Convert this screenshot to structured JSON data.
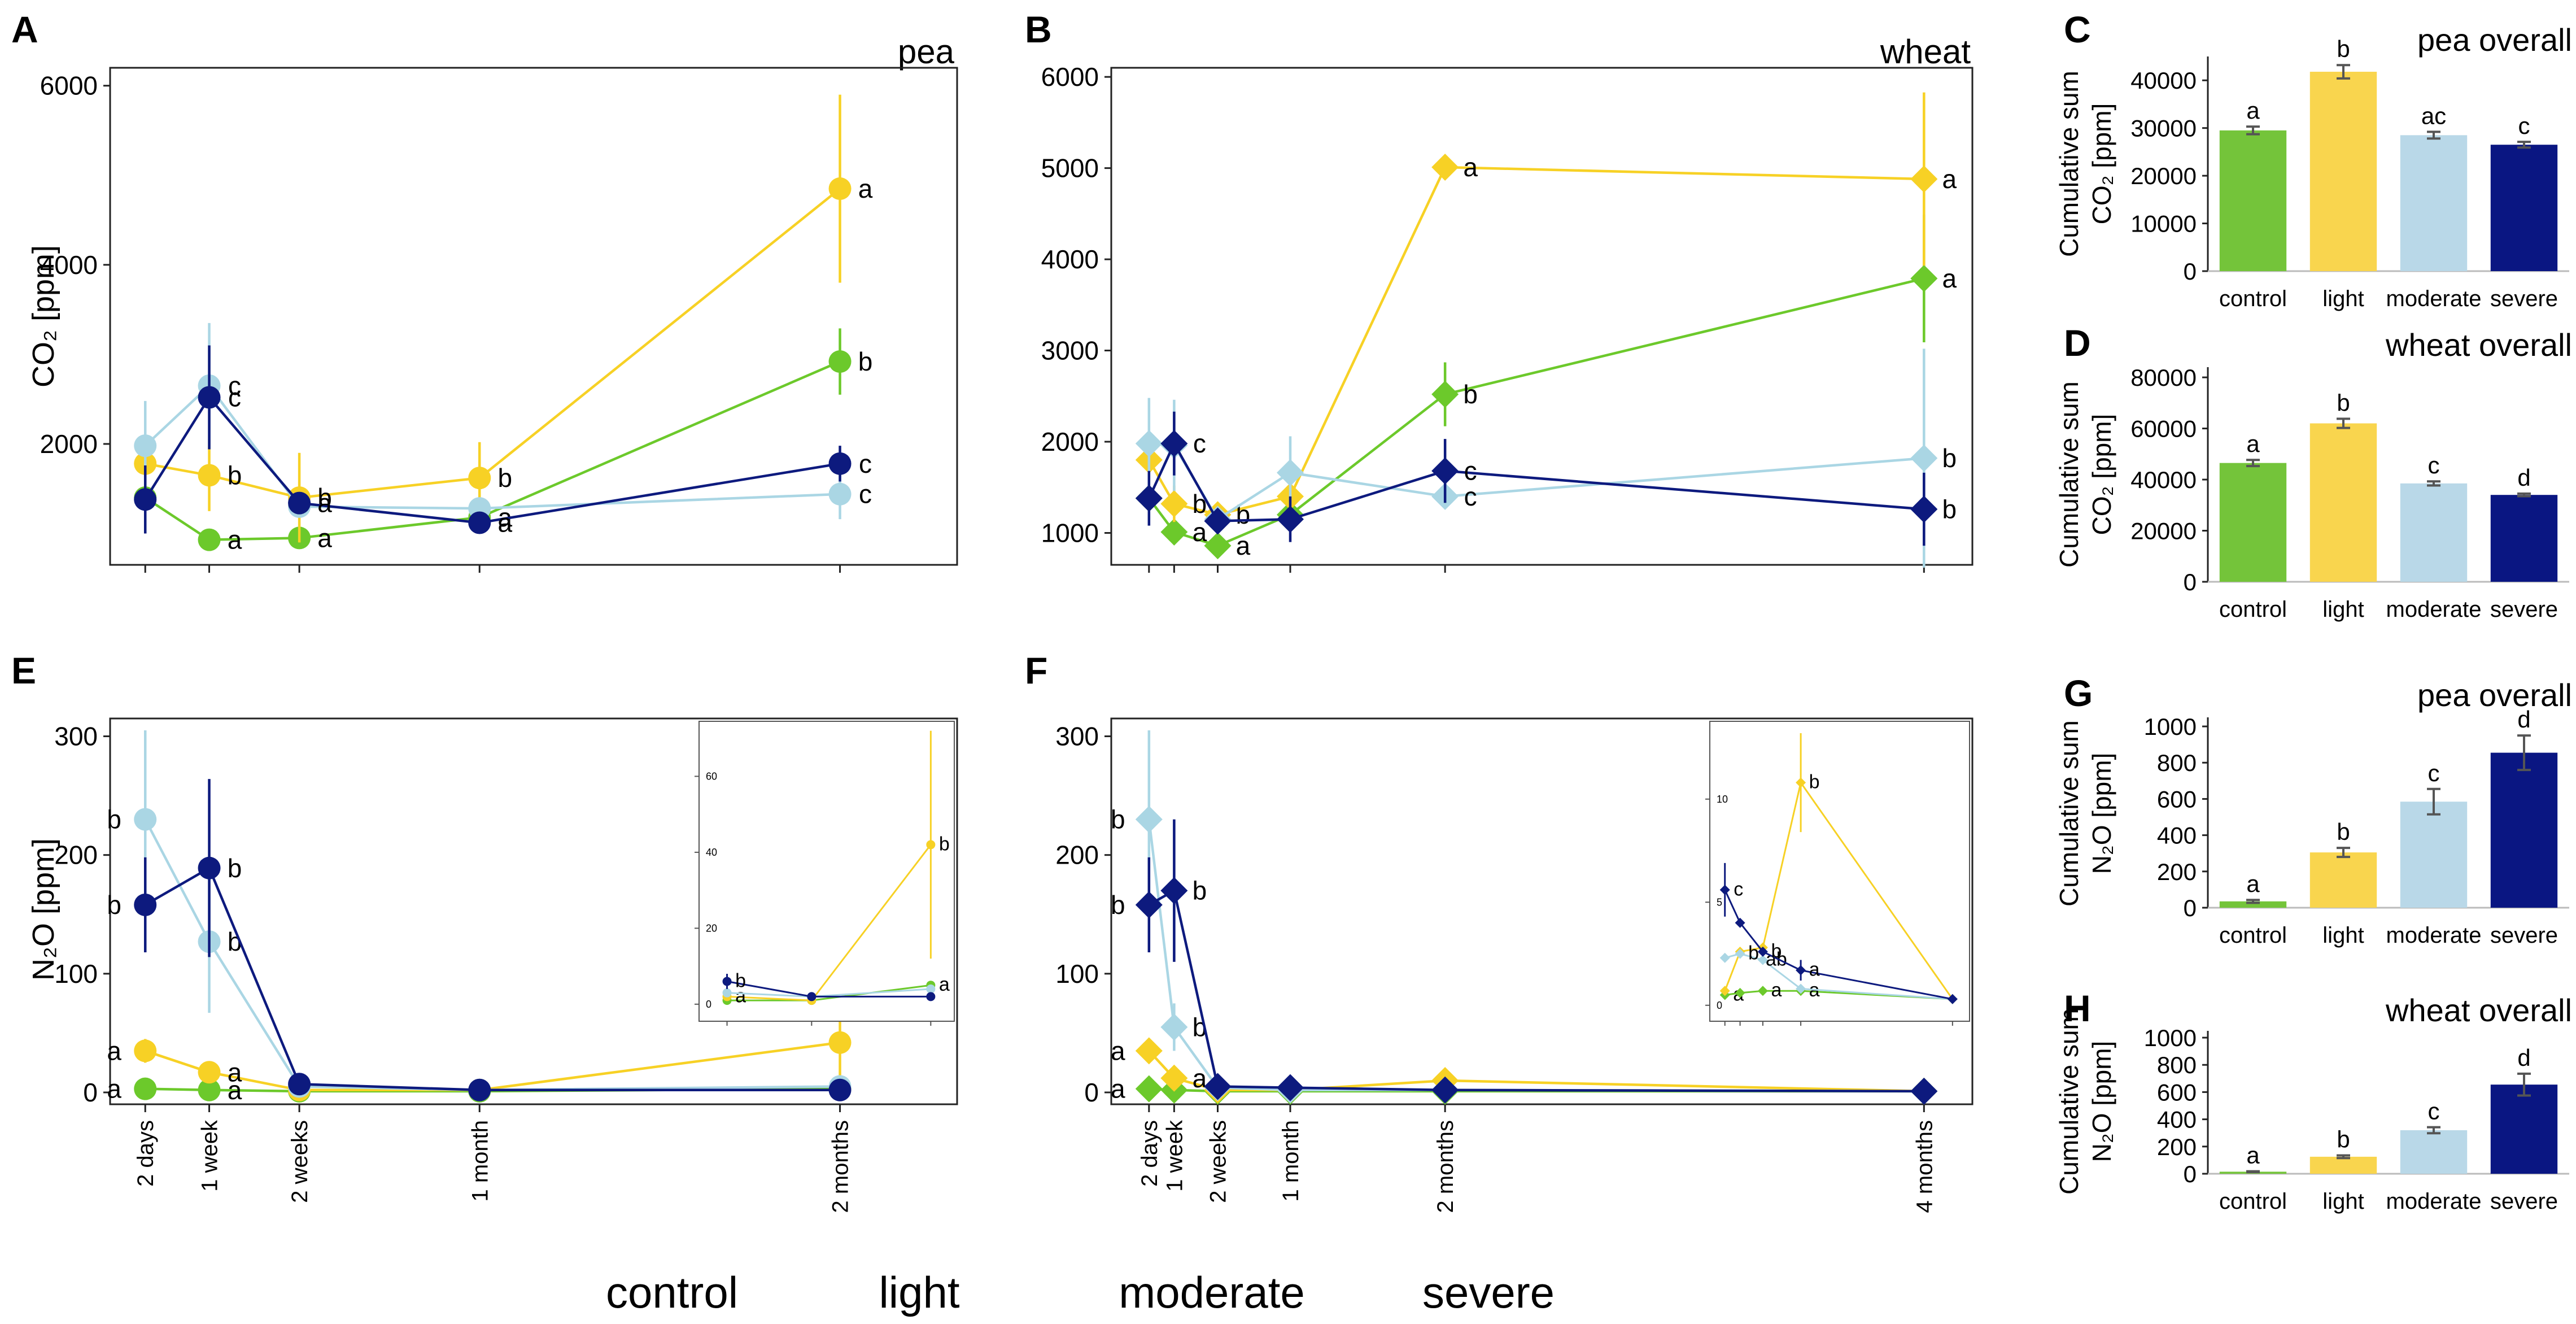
{
  "colors": {
    "control": "#6cc92b",
    "light": "#f7d125",
    "moderate": "#aad6e4",
    "severe": "#0d1a7e",
    "bar_control": "#74c43a",
    "bar_light": "#f9d54e",
    "bar_moderate": "#b9d8e8",
    "bar_severe": "#0a1682"
  },
  "legend": [
    {
      "key": "control",
      "label": "control"
    },
    {
      "key": "light",
      "label": "light"
    },
    {
      "key": "moderate",
      "label": "moderate"
    },
    {
      "key": "severe",
      "label": "severe"
    }
  ],
  "chart_data": [
    {
      "id": "A",
      "panel_letter": "A",
      "type": "line",
      "title": "pea",
      "ylabel": "CO₂ [ppm]",
      "marker": "circle",
      "ylim": [
        650,
        6200
      ],
      "xlim": [
        -0.1,
        9.3
      ],
      "yticks": [
        2000,
        4000,
        6000
      ],
      "x": [
        0.29,
        1.0,
        2.0,
        4.0,
        8.0
      ],
      "xtick_labels": [
        "2 days",
        "1 week",
        "2 weeks",
        "1 month",
        "2 months"
      ],
      "show_xtick_labels": false,
      "series": [
        {
          "name": "control",
          "values": [
            1400,
            930,
            950,
            1180,
            2920
          ],
          "err": [
            0,
            0,
            0,
            0,
            370
          ],
          "letters": [
            "",
            "a",
            "a",
            "a",
            "b"
          ]
        },
        {
          "name": "light",
          "values": [
            1780,
            1650,
            1400,
            1620,
            4850
          ],
          "err": [
            0,
            400,
            500,
            400,
            1050
          ],
          "letters": [
            "",
            "b",
            "b",
            "b",
            "a"
          ]
        },
        {
          "name": "moderate",
          "values": [
            1980,
            2650,
            1300,
            1280,
            1440
          ],
          "err": [
            500,
            700,
            0,
            0,
            280
          ],
          "letters": [
            "",
            "c",
            "",
            "",
            "c"
          ]
        },
        {
          "name": "severe",
          "values": [
            1380,
            2520,
            1340,
            1120,
            1780
          ],
          "err": [
            380,
            580,
            0,
            0,
            200
          ],
          "letters": [
            "",
            "c",
            "a",
            "a",
            "c"
          ]
        }
      ]
    },
    {
      "id": "B",
      "panel_letter": "B",
      "type": "line",
      "title": "wheat",
      "ylabel": "",
      "marker": "diamond",
      "ylim": [
        650,
        6100
      ],
      "xlim": [
        -0.1,
        8.8
      ],
      "yticks": [
        1000,
        2000,
        3000,
        4000,
        5000,
        6000
      ],
      "x": [
        0.29,
        0.55,
        1.0,
        1.75,
        3.35,
        8.3
      ],
      "xtick_labels": [
        "2 days",
        "1 week",
        "2 weeks",
        "1 month",
        "2 months",
        "4 months"
      ],
      "show_xtick_labels": false,
      "series": [
        {
          "name": "control",
          "values": [
            1380,
            1010,
            860,
            1200,
            2520,
            3790
          ],
          "err": [
            0,
            0,
            0,
            0,
            350,
            700
          ],
          "letters": [
            "",
            "a",
            "a",
            "",
            "b",
            "a"
          ]
        },
        {
          "name": "light",
          "values": [
            1800,
            1320,
            1200,
            1400,
            5010,
            4880
          ],
          "err": [
            0,
            200,
            0,
            0,
            0,
            950
          ],
          "letters": [
            "",
            "b",
            "b",
            "",
            "a",
            "a"
          ]
        },
        {
          "name": "moderate",
          "values": [
            1980,
            1960,
            1150,
            1660,
            1400,
            1820
          ],
          "err": [
            500,
            500,
            0,
            400,
            0,
            1200
          ],
          "letters": [
            "",
            "",
            "",
            "",
            "c",
            "b"
          ]
        },
        {
          "name": "severe",
          "values": [
            1380,
            1980,
            1130,
            1150,
            1680,
            1260
          ],
          "err": [
            300,
            350,
            0,
            250,
            350,
            400
          ],
          "letters": [
            "",
            "c",
            "",
            "",
            "c",
            "b"
          ]
        }
      ]
    },
    {
      "id": "E",
      "panel_letter": "E",
      "type": "line",
      "title": "",
      "ylabel": "N₂O [ppm]",
      "marker": "circle",
      "ylim": [
        -10,
        315
      ],
      "xlim": [
        -0.1,
        9.3
      ],
      "yticks": [
        0,
        100,
        200,
        300
      ],
      "x": [
        0.29,
        1.0,
        2.0,
        4.0,
        8.0
      ],
      "xtick_labels": [
        "2 days",
        "1 week",
        "2 weeks",
        "1 month",
        "2 months"
      ],
      "show_xtick_labels": true,
      "series": [
        {
          "name": "control",
          "values": [
            3,
            2,
            1,
            1,
            3
          ],
          "err": [
            0,
            0,
            0,
            0,
            0
          ],
          "letters": [
            "a",
            "a",
            "",
            "",
            ""
          ]
        },
        {
          "name": "light",
          "values": [
            35,
            17,
            2,
            2,
            42
          ],
          "err": [
            10,
            0,
            0,
            0,
            30
          ],
          "letters": [
            "a",
            "a",
            "",
            "",
            ""
          ]
        },
        {
          "name": "moderate",
          "values": [
            230,
            127,
            5,
            2,
            5
          ],
          "err": [
            75,
            60,
            0,
            0,
            0
          ],
          "letters": [
            "b",
            "b",
            "",
            "",
            ""
          ]
        },
        {
          "name": "severe",
          "values": [
            158,
            189,
            7,
            2,
            2
          ],
          "err": [
            40,
            75,
            0,
            0,
            0
          ],
          "letters": [
            "b",
            "b",
            "",
            "",
            ""
          ]
        }
      ],
      "inset": {
        "ylim": [
          -3,
          73
        ],
        "yticks": [
          0,
          20,
          40,
          60
        ],
        "x": [
          0.29,
          1.0,
          2.0
        ],
        "xlim": [
          0.15,
          2.15
        ],
        "marker": "circle",
        "series": [
          {
            "name": "control",
            "values": [
              1,
              1,
              5
            ],
            "err": [
              0,
              0,
              0
            ],
            "letters": [
              "",
              "",
              "a"
            ]
          },
          {
            "name": "light",
            "values": [
              2,
              1,
              42
            ],
            "err": [
              0,
              0,
              30
            ],
            "letters": [
              "a",
              "",
              "b"
            ]
          },
          {
            "name": "moderate",
            "values": [
              3,
              2,
              4
            ],
            "err": [
              0,
              0,
              0
            ],
            "letters": [
              "",
              "",
              ""
            ]
          },
          {
            "name": "severe",
            "values": [
              6,
              2,
              2
            ],
            "err": [
              2,
              0,
              0
            ],
            "letters": [
              "b",
              "",
              ""
            ]
          }
        ]
      }
    },
    {
      "id": "F",
      "panel_letter": "F",
      "type": "line",
      "title": "",
      "ylabel": "",
      "marker": "diamond",
      "ylim": [
        -10,
        315
      ],
      "xlim": [
        -0.1,
        8.8
      ],
      "yticks": [
        0,
        100,
        200,
        300
      ],
      "x": [
        0.29,
        0.55,
        1.0,
        1.75,
        3.35,
        8.3
      ],
      "xtick_labels": [
        "2 days",
        "1 week",
        "2 weeks",
        "1 month",
        "2 months",
        "4 months"
      ],
      "show_xtick_labels": true,
      "series": [
        {
          "name": "control",
          "values": [
            3,
            2,
            1,
            1,
            1,
            1
          ],
          "err": [
            0,
            0,
            0,
            0,
            0,
            0
          ],
          "letters": [
            "a",
            "",
            "",
            "",
            "",
            ""
          ]
        },
        {
          "name": "light",
          "values": [
            35,
            12,
            2,
            2,
            10,
            1
          ],
          "err": [
            0,
            0,
            0,
            0,
            0,
            0
          ],
          "letters": [
            "a",
            "a",
            "",
            "",
            "",
            ""
          ]
        },
        {
          "name": "moderate",
          "values": [
            230,
            55,
            4,
            2,
            2,
            1
          ],
          "err": [
            75,
            20,
            0,
            0,
            0,
            0
          ],
          "letters": [
            "b",
            "b",
            "",
            "",
            "",
            ""
          ]
        },
        {
          "name": "severe",
          "values": [
            158,
            170,
            5,
            4,
            2,
            1
          ],
          "err": [
            40,
            60,
            0,
            0,
            0,
            0
          ],
          "letters": [
            "b",
            "b",
            "",
            "",
            "",
            ""
          ]
        }
      ],
      "inset": {
        "ylim": [
          -0.5,
          13.5
        ],
        "yticks": [
          0,
          5,
          10
        ],
        "x": [
          0.0,
          0.4,
          1.0,
          2.0,
          6.0
        ],
        "xlim": [
          -0.1,
          6.3
        ],
        "marker": "diamond",
        "series": [
          {
            "name": "control",
            "values": [
              0.5,
              0.6,
              0.7,
              0.7,
              0.3
            ],
            "err": [
              0,
              0,
              0,
              0,
              0
            ],
            "letters": [
              "a",
              "",
              "a",
              "a",
              ""
            ]
          },
          {
            "name": "light",
            "values": [
              0.7,
              2.6,
              2.8,
              10.8,
              0.3
            ],
            "err": [
              0,
              0,
              0,
              2.4,
              0
            ],
            "letters": [
              "",
              "",
              "",
              "b",
              ""
            ]
          },
          {
            "name": "moderate",
            "values": [
              2.3,
              2.5,
              2.2,
              0.8,
              0.3
            ],
            "err": [
              0,
              0,
              0,
              0,
              0
            ],
            "letters": [
              "",
              "b",
              "ab",
              "",
              ""
            ]
          },
          {
            "name": "severe",
            "values": [
              5.6,
              4.0,
              2.6,
              1.7,
              0.3
            ],
            "err": [
              1.3,
              0,
              0,
              0.5,
              0
            ],
            "letters": [
              "c",
              "",
              "b",
              "a",
              ""
            ]
          }
        ]
      }
    },
    {
      "id": "C",
      "panel_letter": "C",
      "type": "bar",
      "title": "pea overall",
      "ylabel": [
        "Cumulative sum",
        "CO₂ [ppm]"
      ],
      "categories": [
        "control",
        "light",
        "moderate",
        "severe"
      ],
      "values": [
        29500,
        41800,
        28500,
        26500
      ],
      "err": [
        800,
        1400,
        700,
        600
      ],
      "letters": [
        "a",
        "b",
        "ac",
        "c"
      ],
      "ylim": [
        0,
        45000
      ],
      "yticks": [
        0,
        10000,
        20000,
        30000,
        40000
      ]
    },
    {
      "id": "D",
      "panel_letter": "D",
      "type": "bar",
      "title": "wheat overall",
      "ylabel": [
        "Cumulative sum",
        "CO₂ [ppm]"
      ],
      "categories": [
        "control",
        "light",
        "moderate",
        "severe"
      ],
      "values": [
        46500,
        62000,
        38500,
        34000
      ],
      "err": [
        1200,
        1800,
        800,
        500
      ],
      "letters": [
        "a",
        "b",
        "c",
        "d"
      ],
      "ylim": [
        0,
        84000
      ],
      "yticks": [
        0,
        20000,
        40000,
        60000,
        80000
      ]
    },
    {
      "id": "G",
      "panel_letter": "G",
      "type": "bar",
      "title": "pea overall",
      "ylabel": [
        "Cumulative sum",
        "N₂O [ppm]"
      ],
      "categories": [
        "control",
        "light",
        "moderate",
        "severe"
      ],
      "values": [
        35,
        305,
        585,
        855
      ],
      "err": [
        8,
        25,
        70,
        95
      ],
      "letters": [
        "a",
        "b",
        "c",
        "d"
      ],
      "ylim": [
        0,
        1050
      ],
      "yticks": [
        0,
        200,
        400,
        600,
        800,
        1000
      ]
    },
    {
      "id": "H",
      "panel_letter": "H",
      "type": "bar",
      "title": "wheat overall",
      "ylabel": [
        "Cumulative sum",
        "N₂O [ppm]"
      ],
      "categories": [
        "control",
        "light",
        "moderate",
        "severe"
      ],
      "values": [
        15,
        125,
        320,
        655
      ],
      "err": [
        3,
        10,
        22,
        80
      ],
      "letters": [
        "a",
        "b",
        "c",
        "d"
      ],
      "ylim": [
        0,
        1050
      ],
      "yticks": [
        0,
        200,
        400,
        600,
        800,
        1000
      ]
    }
  ]
}
